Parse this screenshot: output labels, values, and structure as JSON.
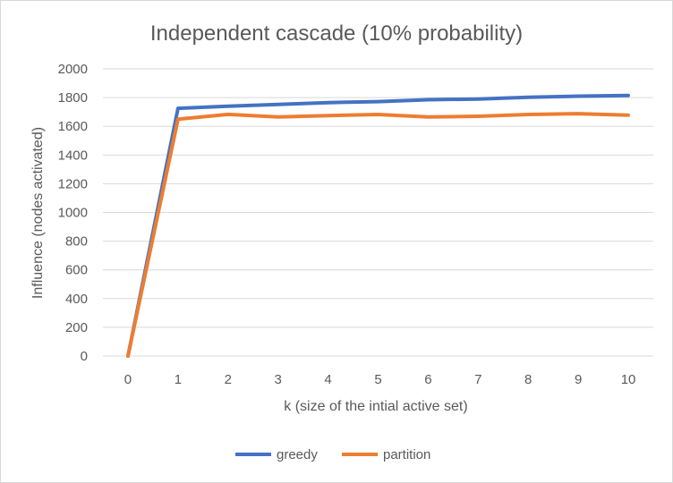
{
  "chart_data": {
    "type": "line",
    "title": "Independent  cascade (10% probability)",
    "xlabel": "k (size of the intial active set)",
    "ylabel": "Influence (nodes activated)",
    "x": [
      0,
      1,
      2,
      3,
      4,
      5,
      6,
      7,
      8,
      9,
      10
    ],
    "ylim": [
      0,
      2000
    ],
    "yticks": [
      0,
      200,
      400,
      600,
      800,
      1000,
      1200,
      1400,
      1600,
      1800,
      2000
    ],
    "grid": true,
    "legend": "bottom",
    "series": [
      {
        "name": "greedy",
        "color": "#4472c4",
        "values": [
          0,
          1725,
          1740,
          1752,
          1765,
          1772,
          1785,
          1790,
          1802,
          1810,
          1815
        ]
      },
      {
        "name": "partition",
        "color": "#ed7d31",
        "values": [
          0,
          1650,
          1683,
          1665,
          1675,
          1682,
          1665,
          1670,
          1682,
          1688,
          1678
        ]
      }
    ]
  }
}
